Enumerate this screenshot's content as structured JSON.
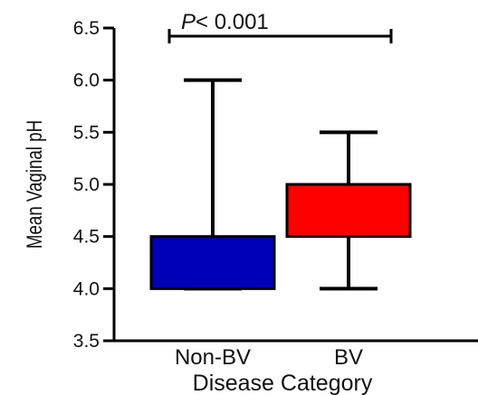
{
  "chart_data": {
    "type": "box",
    "title": "",
    "xlabel": "Disease Category",
    "ylabel": "Mean Vaginal pH",
    "ylim": [
      3.5,
      6.5
    ],
    "yticks": [
      3.5,
      4.0,
      4.5,
      5.0,
      5.5,
      6.0,
      6.5
    ],
    "ytick_labels": [
      "3.5",
      "4.0",
      "4.5",
      "5.0",
      "5.5",
      "6.0",
      "6.5"
    ],
    "categories": [
      "Non-BV",
      "BV"
    ],
    "boxes": [
      {
        "category": "Non-BV",
        "min": 4.0,
        "q1": 4.0,
        "median": 4.5,
        "q3": 4.5,
        "max": 6.0,
        "color": "#0000b8"
      },
      {
        "category": "BV",
        "min": 4.0,
        "q1": 4.5,
        "median": 5.0,
        "q3": 5.0,
        "max": 5.5,
        "color": "#ff0000"
      }
    ],
    "annotation": {
      "prefix": "P",
      "text": "< 0.001",
      "between": [
        "Non-BV",
        "BV"
      ]
    },
    "grid": false
  }
}
